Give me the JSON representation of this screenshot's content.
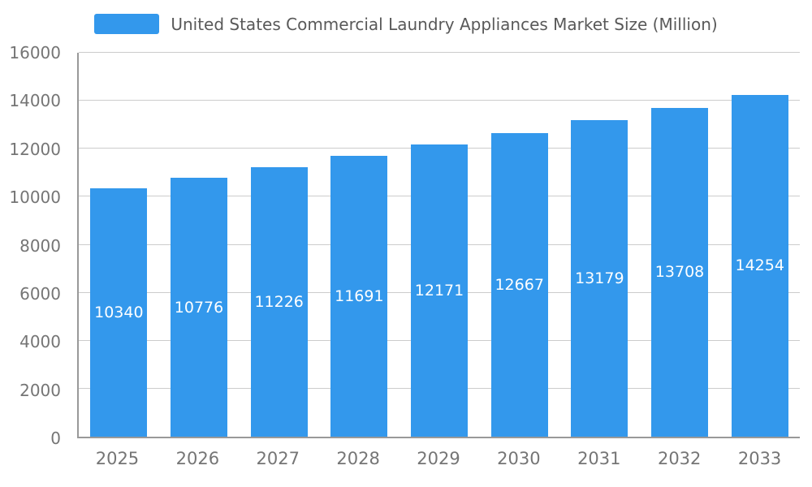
{
  "chart_data": {
    "type": "bar",
    "title": "United States Commercial Laundry Appliances Market Size (Million)",
    "categories": [
      "2025",
      "2026",
      "2027",
      "2028",
      "2029",
      "2030",
      "2031",
      "2032",
      "2033"
    ],
    "values": [
      10340,
      10776,
      11226,
      11691,
      12171,
      12667,
      13179,
      13708,
      14254
    ],
    "xlabel": "",
    "ylabel": "",
    "ylim": [
      0,
      16000
    ],
    "ytick_step": 2000,
    "grid": true,
    "legend_position": "top",
    "bar_color": "#3398EC",
    "label_color": "#ffffff",
    "axis_text_color": "#757575",
    "grid_color": "#cccccc",
    "axis_line_color": "#999999"
  }
}
